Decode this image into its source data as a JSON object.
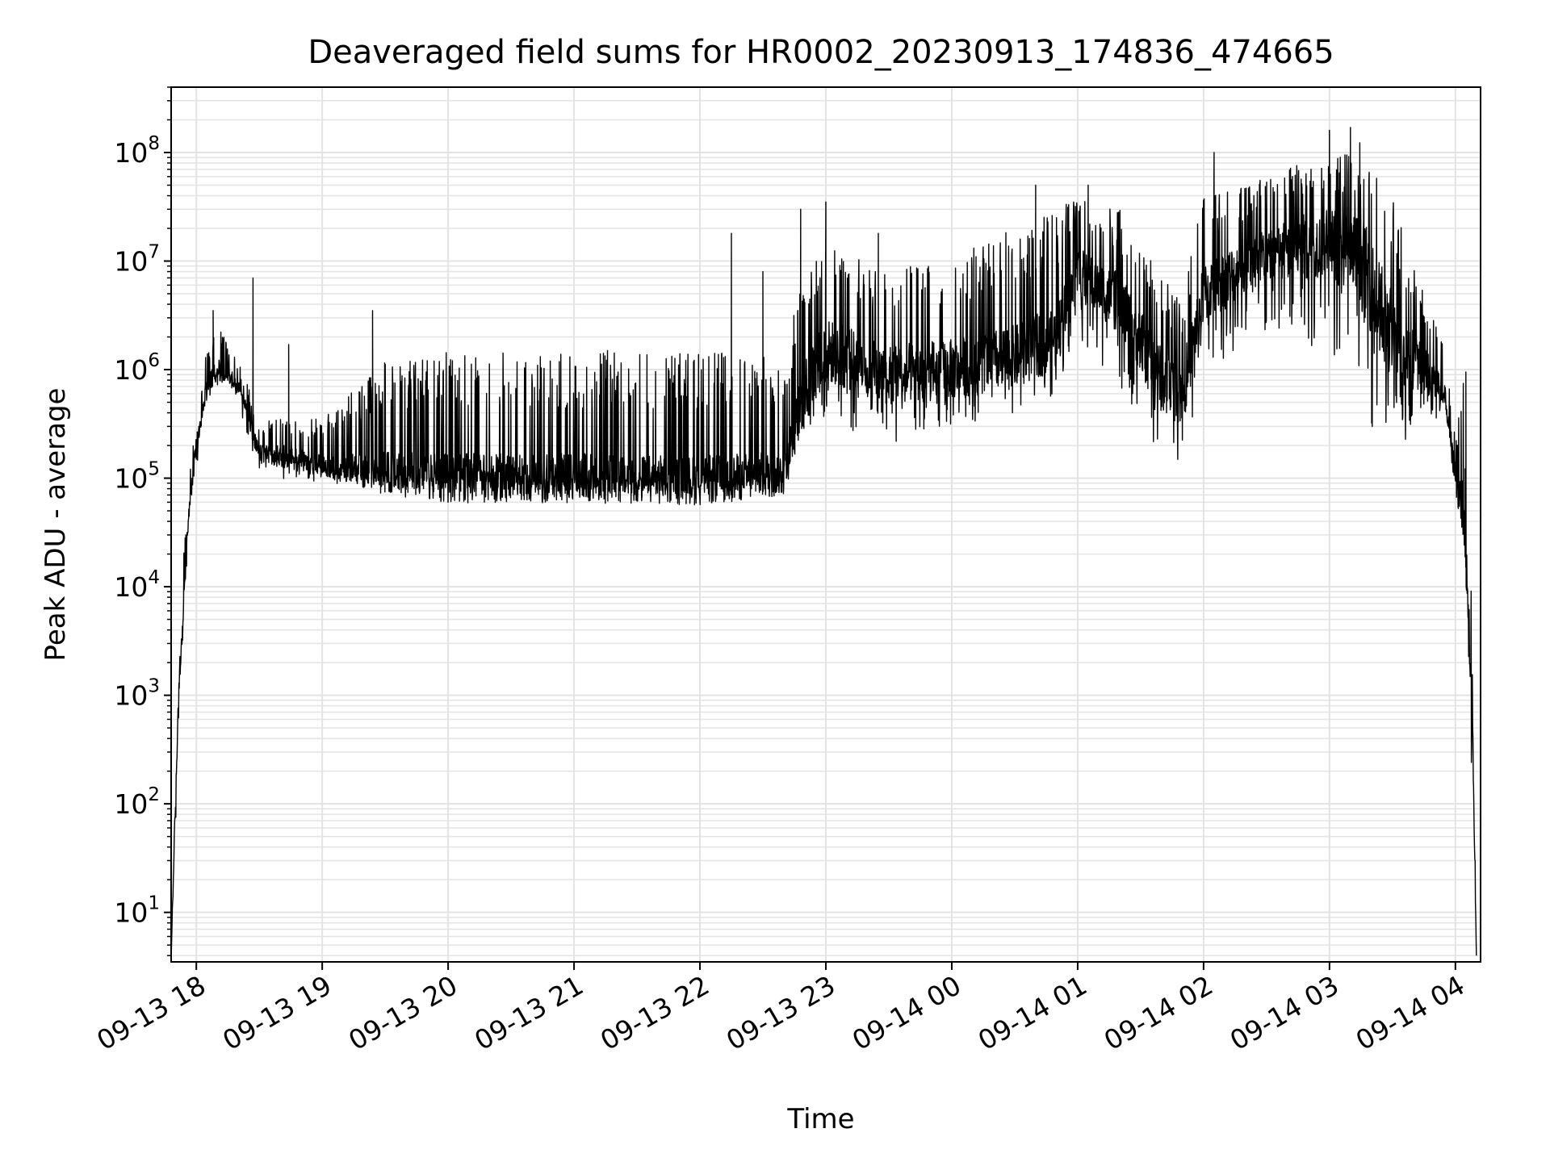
{
  "chart_data": {
    "type": "line",
    "title": "Deaveraged field sums for HR0002_20230913_174836_474665",
    "xlabel": "Time",
    "ylabel": "Peak ADU - average",
    "y_scale": "log",
    "ylim": [
      3.5,
      400000000.0
    ],
    "xlim": [
      "2023-09-13 17:48",
      "2023-09-14 04:12"
    ],
    "grid": true,
    "x_ticks": [
      {
        "t": "2023-09-13 18:00",
        "label": "09-13 18"
      },
      {
        "t": "2023-09-13 19:00",
        "label": "09-13 19"
      },
      {
        "t": "2023-09-13 20:00",
        "label": "09-13 20"
      },
      {
        "t": "2023-09-13 21:00",
        "label": "09-13 21"
      },
      {
        "t": "2023-09-13 22:00",
        "label": "09-13 22"
      },
      {
        "t": "2023-09-13 23:00",
        "label": "09-13 23"
      },
      {
        "t": "2023-09-14 00:00",
        "label": "09-14 00"
      },
      {
        "t": "2023-09-14 01:00",
        "label": "09-14 01"
      },
      {
        "t": "2023-09-14 02:00",
        "label": "09-14 02"
      },
      {
        "t": "2023-09-14 03:00",
        "label": "09-14 03"
      },
      {
        "t": "2023-09-14 04:00",
        "label": "09-14 04"
      }
    ],
    "y_ticks": [
      {
        "value": 10,
        "base": "10",
        "exp": "1"
      },
      {
        "value": 100,
        "base": "10",
        "exp": "2"
      },
      {
        "value": 1000,
        "base": "10",
        "exp": "3"
      },
      {
        "value": 10000,
        "base": "10",
        "exp": "4"
      },
      {
        "value": 100000,
        "base": "10",
        "exp": "5"
      },
      {
        "value": 1000000,
        "base": "10",
        "exp": "6"
      },
      {
        "value": 10000000,
        "base": "10",
        "exp": "7"
      },
      {
        "value": 100000000,
        "base": "10",
        "exp": "8"
      }
    ],
    "line_color": "#000000",
    "grid_color": "#e3e3e3",
    "series": [
      {
        "envelope": [
          {
            "t": "2023-09-13 17:48",
            "base": 4,
            "low": 4,
            "high": 4
          },
          {
            "t": "2023-09-13 17:50",
            "base": 100,
            "low": 50,
            "high": 150
          },
          {
            "t": "2023-09-13 17:52",
            "base": 1500,
            "low": 1000,
            "high": 2000
          },
          {
            "t": "2023-09-13 17:54",
            "base": 6000,
            "low": 5000,
            "high": 30000
          },
          {
            "t": "2023-09-13 17:56",
            "base": 40000,
            "low": 30000,
            "high": 80000
          },
          {
            "t": "2023-09-13 18:00",
            "base": 200000,
            "low": 120000,
            "high": 400000
          },
          {
            "t": "2023-09-13 18:05",
            "base": 700000,
            "low": 500000,
            "high": 1500000
          },
          {
            "t": "2023-09-13 18:10",
            "base": 1000000,
            "low": 700000,
            "high": 2500000
          },
          {
            "t": "2023-09-13 18:15",
            "base": 900000,
            "low": 600000,
            "high": 2000000
          },
          {
            "t": "2023-09-13 18:20",
            "base": 700000,
            "low": 500000,
            "high": 1200000
          },
          {
            "t": "2023-09-13 18:25",
            "base": 350000,
            "low": 200000,
            "high": 700000
          },
          {
            "t": "2023-09-13 18:30",
            "base": 170000,
            "low": 110000,
            "high": 300000
          },
          {
            "t": "2023-09-13 18:40",
            "base": 160000,
            "low": 100000,
            "high": 400000
          },
          {
            "t": "2023-09-13 19:00",
            "base": 130000,
            "low": 90000,
            "high": 350000
          },
          {
            "t": "2023-09-13 19:30",
            "base": 110000,
            "low": 85000,
            "high": 1200000
          },
          {
            "t": "2023-09-13 20:00",
            "base": 100000,
            "low": 75000,
            "high": 1500000
          },
          {
            "t": "2023-09-13 21:00",
            "base": 100000,
            "low": 75000,
            "high": 1500000
          },
          {
            "t": "2023-09-13 22:00",
            "base": 95000,
            "low": 75000,
            "high": 1500000
          },
          {
            "t": "2023-09-13 22:40",
            "base": 110000,
            "low": 85000,
            "high": 1300000
          },
          {
            "t": "2023-09-13 22:50",
            "base": 700000,
            "low": 250000,
            "high": 10000000
          },
          {
            "t": "2023-09-13 23:00",
            "base": 1500000,
            "low": 300000,
            "high": 15000000
          },
          {
            "t": "2023-09-13 23:30",
            "base": 900000,
            "low": 200000,
            "high": 8000000
          },
          {
            "t": "2023-09-14 00:00",
            "base": 1000000,
            "low": 300000,
            "high": 12000000
          },
          {
            "t": "2023-09-14 00:30",
            "base": 1300000,
            "low": 400000,
            "high": 20000000
          },
          {
            "t": "2023-09-14 00:50",
            "base": 2000000,
            "low": 600000,
            "high": 30000000
          },
          {
            "t": "2023-09-14 01:00",
            "base": 8000000,
            "low": 2000000,
            "high": 40000000
          },
          {
            "t": "2023-09-14 01:20",
            "base": 4000000,
            "low": 700000,
            "high": 30000000
          },
          {
            "t": "2023-09-14 01:40",
            "base": 800000,
            "low": 150000,
            "high": 8000000
          },
          {
            "t": "2023-09-14 01:50",
            "base": 600000,
            "low": 100000,
            "high": 5000000
          },
          {
            "t": "2023-09-14 02:00",
            "base": 5000000,
            "low": 1000000,
            "high": 40000000
          },
          {
            "t": "2023-09-14 02:30",
            "base": 12000000,
            "low": 2000000,
            "high": 60000000
          },
          {
            "t": "2023-09-14 03:00",
            "base": 15000000,
            "low": 1500000,
            "high": 100000000
          },
          {
            "t": "2023-09-14 03:15",
            "base": 10000000,
            "low": 400000,
            "high": 130000000
          },
          {
            "t": "2023-09-14 03:30",
            "base": 2000000,
            "low": 150000,
            "high": 40000000
          },
          {
            "t": "2023-09-14 03:45",
            "base": 1000000,
            "low": 300000,
            "high": 5000000
          },
          {
            "t": "2023-09-14 03:55",
            "base": 600000,
            "low": 400000,
            "high": 1500000
          },
          {
            "t": "2023-09-14 04:00",
            "base": 100000,
            "low": 50000,
            "high": 300000
          },
          {
            "t": "2023-09-14 04:04",
            "base": 50000,
            "low": 30000,
            "high": 900000
          },
          {
            "t": "2023-09-14 04:08",
            "base": 1000,
            "low": 100,
            "high": 5000
          },
          {
            "t": "2023-09-14 04:10",
            "base": 4,
            "low": 4,
            "high": 4
          }
        ],
        "spikes": [
          {
            "t": "2023-09-13 17:55",
            "value": 30000
          },
          {
            "t": "2023-09-13 18:08",
            "value": 3500000
          },
          {
            "t": "2023-09-13 18:27",
            "value": 7000000
          },
          {
            "t": "2023-09-13 18:44",
            "value": 1700000
          },
          {
            "t": "2023-09-13 19:24",
            "value": 3500000
          },
          {
            "t": "2023-09-13 22:15",
            "value": 18000000
          },
          {
            "t": "2023-09-13 22:30",
            "value": 8000000
          },
          {
            "t": "2023-09-13 22:48",
            "value": 30000000
          },
          {
            "t": "2023-09-13 23:00",
            "value": 35000000
          },
          {
            "t": "2023-09-13 23:25",
            "value": 18000000
          },
          {
            "t": "2023-09-14 00:40",
            "value": 50000000
          },
          {
            "t": "2023-09-14 01:05",
            "value": 50000000
          },
          {
            "t": "2023-09-14 02:05",
            "value": 100000000
          },
          {
            "t": "2023-09-14 03:00",
            "value": 160000000
          },
          {
            "t": "2023-09-14 03:10",
            "value": 170000000
          },
          {
            "t": "2023-09-14 04:05",
            "value": 950000
          }
        ]
      }
    ]
  }
}
